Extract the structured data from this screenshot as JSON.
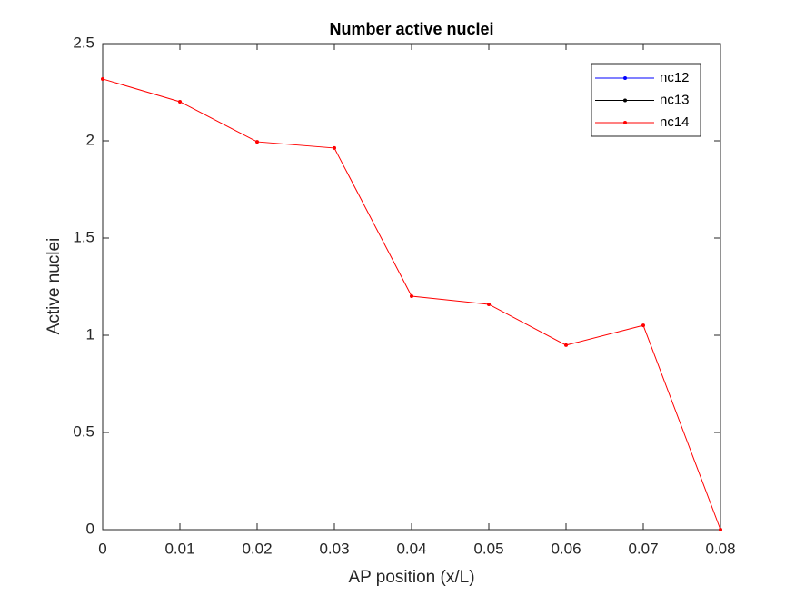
{
  "chart_data": {
    "type": "line",
    "title": "Number active nuclei",
    "xlabel": "AP position (x/L)",
    "ylabel": "Active nuclei",
    "x": [
      0,
      0.01,
      0.02,
      0.03,
      0.04,
      0.05,
      0.06,
      0.07,
      0.08
    ],
    "series": [
      {
        "name": "nc12",
        "color": "#0000ff",
        "values": [
          null,
          null,
          null,
          null,
          null,
          null,
          null,
          null,
          null
        ]
      },
      {
        "name": "nc13",
        "color": "#000000",
        "values": [
          null,
          null,
          null,
          null,
          null,
          null,
          null,
          null,
          null
        ]
      },
      {
        "name": "nc14",
        "color": "#ff0000",
        "values": [
          2.318,
          2.201,
          1.995,
          1.963,
          1.201,
          1.159,
          0.949,
          1.051,
          0
        ]
      }
    ],
    "xlim": [
      0,
      0.08
    ],
    "xticks": [
      0,
      0.01,
      0.02,
      0.03,
      0.04,
      0.05,
      0.06,
      0.07,
      0.08
    ],
    "ylim": [
      0,
      2.5
    ],
    "yticks": [
      0,
      0.5,
      1,
      1.5,
      2,
      2.5
    ],
    "grid": false,
    "legend": "northeast"
  }
}
